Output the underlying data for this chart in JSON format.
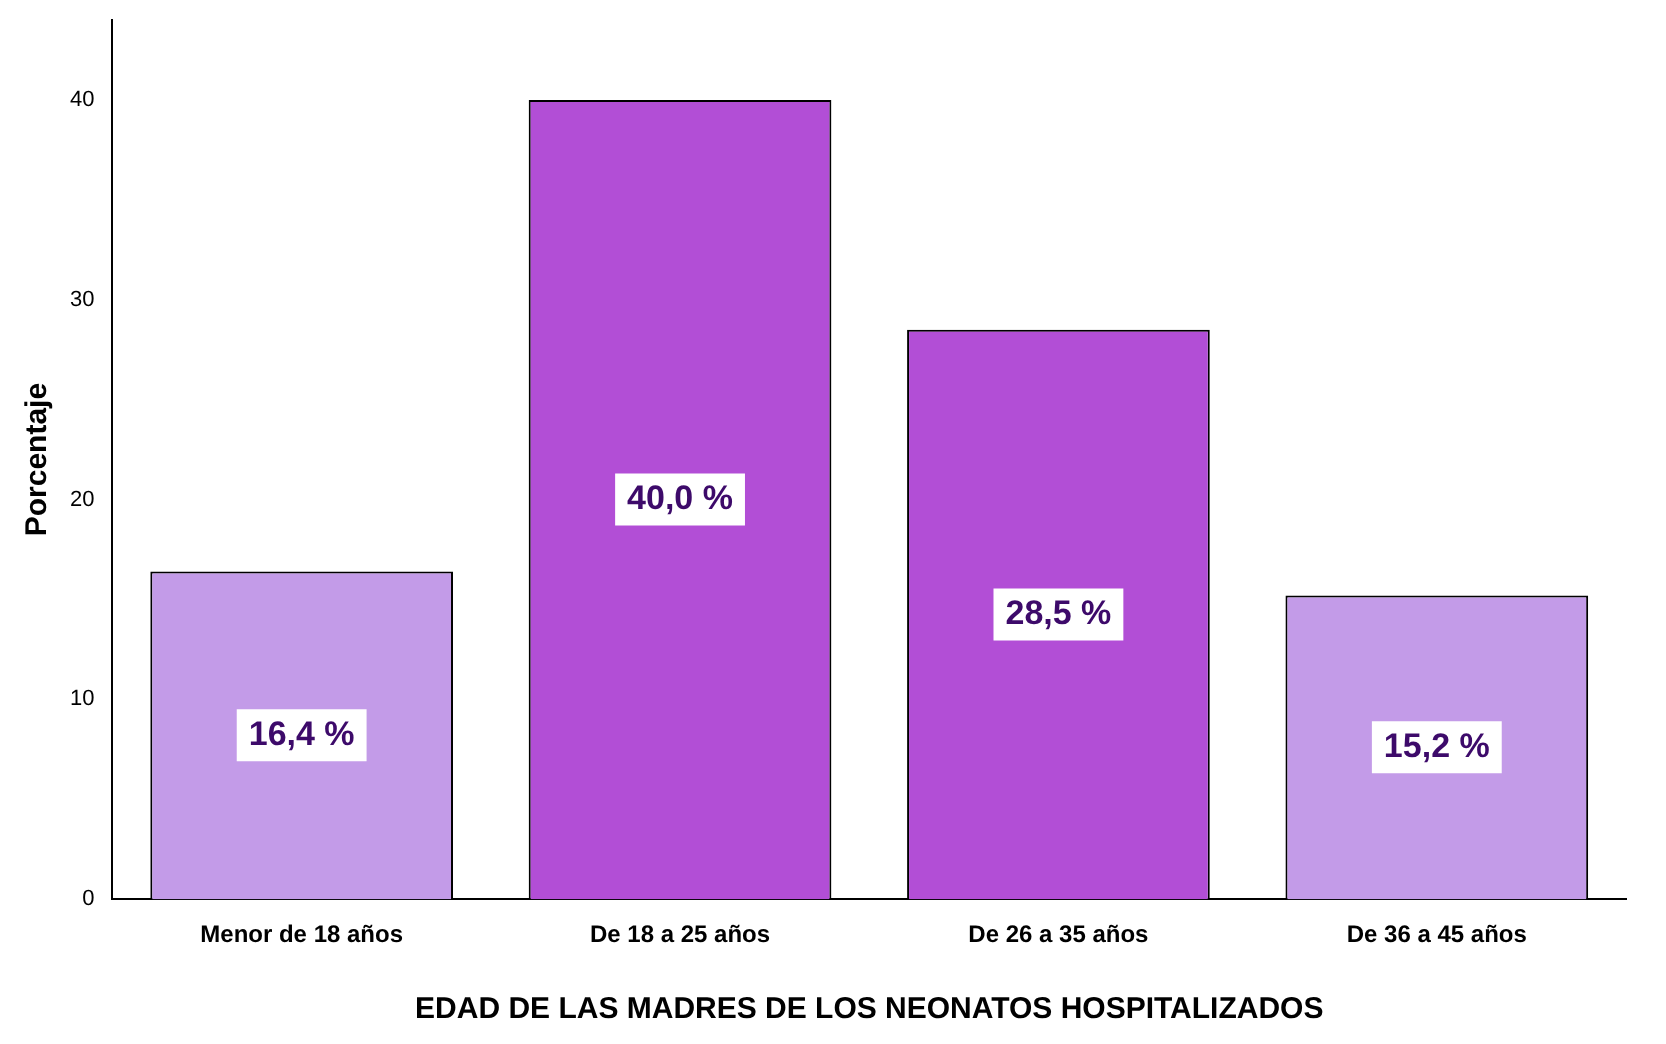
{
  "chart_data": {
    "type": "bar",
    "xlabel": "EDAD DE LAS MADRES DE LOS NEONATOS HOSPITALIZADOS",
    "ylabel": "Porcentaje",
    "categories": [
      "Menor de 18 años",
      "De 18 a 25 años",
      "De 26 a 35 años",
      "De 36 a 45 años"
    ],
    "values": [
      16.4,
      40.0,
      28.5,
      15.2
    ],
    "colors": [
      "#c39be8",
      "#b24ed6",
      "#b24ed6",
      "#c39be8"
    ],
    "value_labels": [
      "16,4 %",
      "40,0 %",
      "28,5 %",
      "15,2 %"
    ],
    "ylim": [
      0,
      44
    ],
    "yticks": [
      0,
      10,
      20,
      30,
      40
    ],
    "grid": false,
    "legend": false
  }
}
